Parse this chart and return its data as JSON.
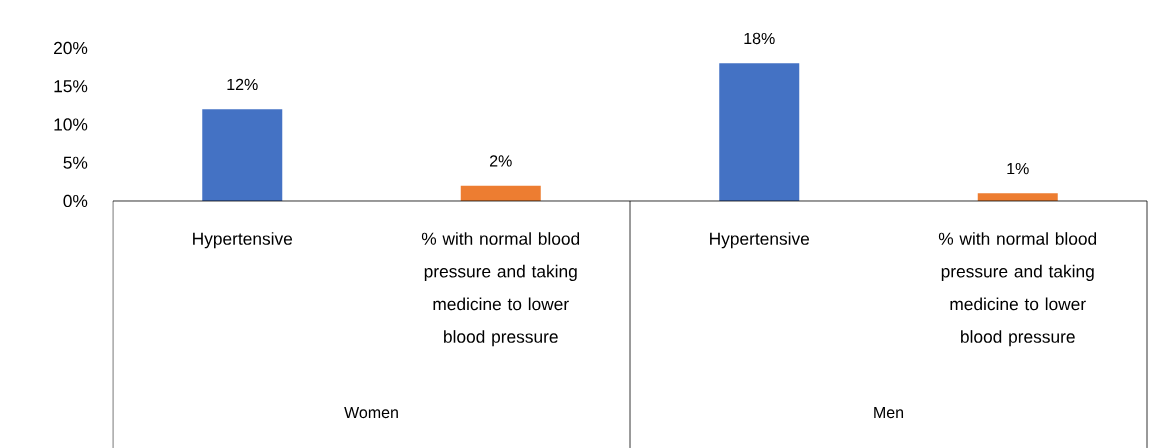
{
  "chart_data": {
    "type": "bar",
    "categories": [
      "Hypertensive",
      "% with normal blood pressure and taking medicine to lower blood pressure",
      "Hypertensive",
      "% with normal blood pressure and taking medicine to lower blood pressure"
    ],
    "values": [
      12,
      2,
      18,
      1
    ],
    "colors": [
      "#4472c4",
      "#ed7d31",
      "#4472c4",
      "#ed7d31"
    ],
    "value_labels": [
      "12%",
      "2%",
      "18%",
      "1%"
    ],
    "ylim": [
      0,
      20
    ],
    "yticks": [
      {
        "value": 0,
        "label": "0%"
      },
      {
        "value": 5,
        "label": "5%"
      },
      {
        "value": 10,
        "label": "10%"
      },
      {
        "value": 15,
        "label": "15%"
      },
      {
        "value": 20,
        "label": "20%"
      }
    ],
    "annotations": [
      "Women",
      "Men"
    ]
  }
}
